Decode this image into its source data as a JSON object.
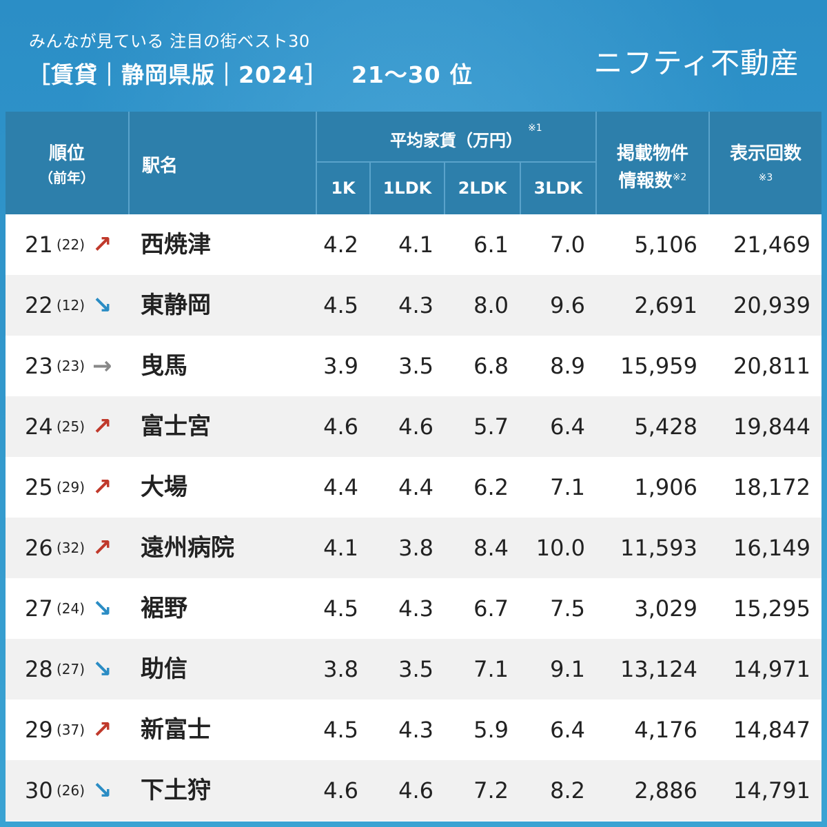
{
  "header": {
    "subtitle": "みんなが見ている 注目の街ベスト30",
    "title": "［賃貸｜静岡県版｜2024］",
    "rank_range": "21〜30 位",
    "brand": "ニフティ不動産"
  },
  "table": {
    "col_rank": "順位",
    "col_rank_prev": "（前年）",
    "col_station": "駅名",
    "col_rent": "平均家賃（万円）",
    "col_rent_note": "※1",
    "col_1k": "1K",
    "col_1ldk": "1LDK",
    "col_2ldk": "2LDK",
    "col_3ldk": "3LDK",
    "col_listings_1": "掲載物件",
    "col_listings_2": "情報数",
    "col_listings_note": "※2",
    "col_views": "表示回数",
    "col_views_note": "※3"
  },
  "colors": {
    "header_bg": "#2d7fab",
    "up": "#c0392b",
    "down": "#2a8cc4",
    "flat": "#888888"
  },
  "rows": [
    {
      "rank": "21",
      "prev": "(22)",
      "trend": "up",
      "arrow": "↗",
      "name": "西焼津",
      "k1": "4.2",
      "ldk1": "4.1",
      "ldk2": "6.1",
      "ldk3": "7.0",
      "listings": "5,106",
      "views": "21,469"
    },
    {
      "rank": "22",
      "prev": "(12)",
      "trend": "down",
      "arrow": "↘",
      "name": "東静岡",
      "k1": "4.5",
      "ldk1": "4.3",
      "ldk2": "8.0",
      "ldk3": "9.6",
      "listings": "2,691",
      "views": "20,939"
    },
    {
      "rank": "23",
      "prev": "(23)",
      "trend": "flat",
      "arrow": "→",
      "name": "曳馬",
      "k1": "3.9",
      "ldk1": "3.5",
      "ldk2": "6.8",
      "ldk3": "8.9",
      "listings": "15,959",
      "views": "20,811"
    },
    {
      "rank": "24",
      "prev": "(25)",
      "trend": "up",
      "arrow": "↗",
      "name": "富士宮",
      "k1": "4.6",
      "ldk1": "4.6",
      "ldk2": "5.7",
      "ldk3": "6.4",
      "listings": "5,428",
      "views": "19,844"
    },
    {
      "rank": "25",
      "prev": "(29)",
      "trend": "up",
      "arrow": "↗",
      "name": "大場",
      "k1": "4.4",
      "ldk1": "4.4",
      "ldk2": "6.2",
      "ldk3": "7.1",
      "listings": "1,906",
      "views": "18,172"
    },
    {
      "rank": "26",
      "prev": "(32)",
      "trend": "up",
      "arrow": "↗",
      "name": "遠州病院",
      "k1": "4.1",
      "ldk1": "3.8",
      "ldk2": "8.4",
      "ldk3": "10.0",
      "listings": "11,593",
      "views": "16,149"
    },
    {
      "rank": "27",
      "prev": "(24)",
      "trend": "down",
      "arrow": "↘",
      "name": "裾野",
      "k1": "4.5",
      "ldk1": "4.3",
      "ldk2": "6.7",
      "ldk3": "7.5",
      "listings": "3,029",
      "views": "15,295"
    },
    {
      "rank": "28",
      "prev": "(27)",
      "trend": "down",
      "arrow": "↘",
      "name": "助信",
      "k1": "3.8",
      "ldk1": "3.5",
      "ldk2": "7.1",
      "ldk3": "9.1",
      "listings": "13,124",
      "views": "14,971"
    },
    {
      "rank": "29",
      "prev": "(37)",
      "trend": "up",
      "arrow": "↗",
      "name": "新富士",
      "k1": "4.5",
      "ldk1": "4.3",
      "ldk2": "5.9",
      "ldk3": "6.4",
      "listings": "4,176",
      "views": "14,847"
    },
    {
      "rank": "30",
      "prev": "(26)",
      "trend": "down",
      "arrow": "↘",
      "name": "下土狩",
      "k1": "4.6",
      "ldk1": "4.6",
      "ldk2": "7.2",
      "ldk3": "8.2",
      "listings": "2,886",
      "views": "14,791"
    }
  ]
}
